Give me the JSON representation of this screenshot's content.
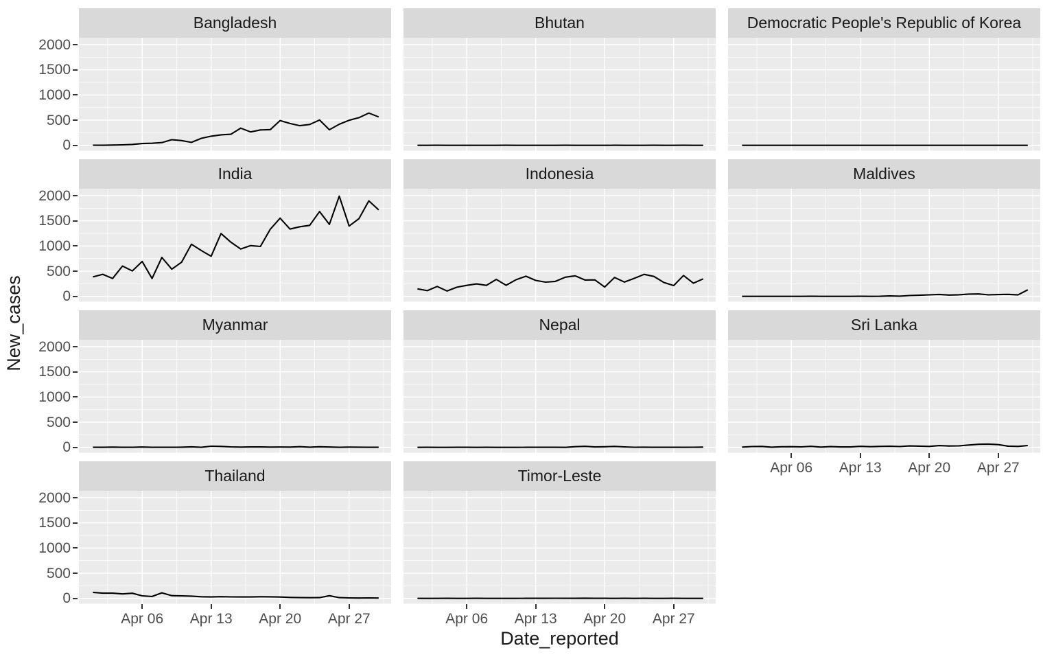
{
  "figure": {
    "y_axis_title": "New_cases",
    "x_axis_title": "Date_reported",
    "colors": {
      "panel_bg": "#EBEBEB",
      "strip_bg": "#D9D9D9",
      "grid": "#FFFFFF",
      "line": "#000000",
      "tick_label": "#4D4D4D",
      "tick_mark": "#333333",
      "title": "#1A1A1A"
    }
  },
  "chart_data": {
    "type": "line",
    "title": "",
    "xlabel": "Date_reported",
    "ylabel": "New_cases",
    "grid": true,
    "legend": false,
    "facet_layout": {
      "columns": 3,
      "rows": 4
    },
    "x": [
      "Apr 01",
      "Apr 02",
      "Apr 03",
      "Apr 04",
      "Apr 05",
      "Apr 06",
      "Apr 07",
      "Apr 08",
      "Apr 09",
      "Apr 10",
      "Apr 11",
      "Apr 12",
      "Apr 13",
      "Apr 14",
      "Apr 15",
      "Apr 16",
      "Apr 17",
      "Apr 18",
      "Apr 19",
      "Apr 20",
      "Apr 21",
      "Apr 22",
      "Apr 23",
      "Apr 24",
      "Apr 25",
      "Apr 26",
      "Apr 27",
      "Apr 28",
      "Apr 29",
      "Apr 30"
    ],
    "x_ticks": [
      {
        "label": "Apr 06",
        "day": 6
      },
      {
        "label": "Apr 13",
        "day": 13
      },
      {
        "label": "Apr 20",
        "day": 20
      },
      {
        "label": "Apr 27",
        "day": 27
      }
    ],
    "x_minor_days": [
      2.5,
      9.5,
      16.5,
      23.5,
      30.5
    ],
    "y_ticks": [
      {
        "label": "0",
        "value": 0
      },
      {
        "label": "500",
        "value": 500
      },
      {
        "label": "1000",
        "value": 1000
      },
      {
        "label": "1500",
        "value": 1500
      },
      {
        "label": "2000",
        "value": 2000
      }
    ],
    "y_minor_values": [
      250,
      750,
      1250,
      1750
    ],
    "ylim": [
      -106,
      2136
    ],
    "series": [
      {
        "name": "Bangladesh",
        "values": [
          3,
          2,
          5,
          9,
          18,
          35,
          41,
          54,
          112,
          94,
          58,
          139,
          182,
          209,
          219,
          341,
          266,
          306,
          312,
          492,
          434,
          390,
          414,
          503,
          309,
          418,
          497,
          549,
          641,
          564
        ]
      },
      {
        "name": "Bhutan",
        "values": [
          0,
          0,
          1,
          0,
          0,
          0,
          0,
          0,
          0,
          1,
          0,
          0,
          0,
          0,
          0,
          1,
          0,
          0,
          0,
          0,
          1,
          0,
          0,
          0,
          2,
          0,
          0,
          1,
          0,
          0
        ]
      },
      {
        "name": "Democratic People's Republic of Korea",
        "values": [
          0,
          0,
          0,
          0,
          0,
          0,
          0,
          0,
          0,
          0,
          0,
          0,
          0,
          0,
          0,
          0,
          0,
          0,
          0,
          0,
          0,
          0,
          0,
          0,
          0,
          0,
          0,
          0,
          0,
          0
        ]
      },
      {
        "name": "India",
        "values": [
          386,
          437,
          354,
          601,
          505,
          693,
          354,
          773,
          540,
          678,
          1035,
          909,
          796,
          1248,
          1076,
          941,
          1007,
          991,
          1334,
          1553,
          1336,
          1383,
          1409,
          1684,
          1429,
          1990,
          1396,
          1543,
          1897,
          1718
        ]
      },
      {
        "name": "Indonesia",
        "values": [
          149,
          113,
          196,
          106,
          181,
          218,
          247,
          218,
          337,
          219,
          330,
          399,
          316,
          282,
          297,
          380,
          407,
          325,
          327,
          185,
          375,
          283,
          357,
          436,
          396,
          275,
          214,
          415,
          260,
          347
        ]
      },
      {
        "name": "Maldives",
        "values": [
          0,
          0,
          0,
          0,
          0,
          0,
          0,
          1,
          0,
          0,
          0,
          0,
          1,
          0,
          2,
          8,
          4,
          16,
          22,
          30,
          38,
          26,
          32,
          45,
          48,
          30,
          36,
          40,
          28,
          130
        ]
      },
      {
        "name": "Myanmar",
        "values": [
          1,
          1,
          5,
          1,
          2,
          7,
          1,
          1,
          2,
          4,
          11,
          1,
          23,
          19,
          9,
          6,
          8,
          10,
          5,
          7,
          6,
          14,
          4,
          12,
          7,
          2,
          5,
          4,
          1,
          2
        ]
      },
      {
        "name": "Nepal",
        "values": [
          0,
          1,
          0,
          0,
          1,
          2,
          0,
          1,
          0,
          0,
          0,
          1,
          1,
          2,
          2,
          0,
          14,
          21,
          8,
          12,
          19,
          9,
          3,
          4,
          1,
          1,
          2,
          2,
          3,
          5
        ]
      },
      {
        "name": "Sri Lanka",
        "values": [
          5,
          16,
          19,
          4,
          12,
          14,
          9,
          21,
          6,
          15,
          8,
          8,
          21,
          13,
          19,
          22,
          16,
          29,
          24,
          19,
          36,
          27,
          30,
          46,
          62,
          66,
          54,
          25,
          19,
          37
        ]
      },
      {
        "name": "Thailand",
        "values": [
          120,
          104,
          103,
          89,
          102,
          51,
          38,
          111,
          54,
          50,
          45,
          33,
          28,
          34,
          30,
          29,
          28,
          33,
          32,
          27,
          19,
          15,
          13,
          15,
          53,
          15,
          9,
          7,
          9,
          7
        ]
      },
      {
        "name": "Timor-Leste",
        "values": [
          0,
          0,
          0,
          1,
          0,
          0,
          1,
          0,
          0,
          0,
          0,
          1,
          2,
          1,
          3,
          2,
          1,
          4,
          1,
          2,
          0,
          1,
          0,
          1,
          0,
          0,
          1,
          0,
          0,
          0
        ]
      }
    ]
  }
}
